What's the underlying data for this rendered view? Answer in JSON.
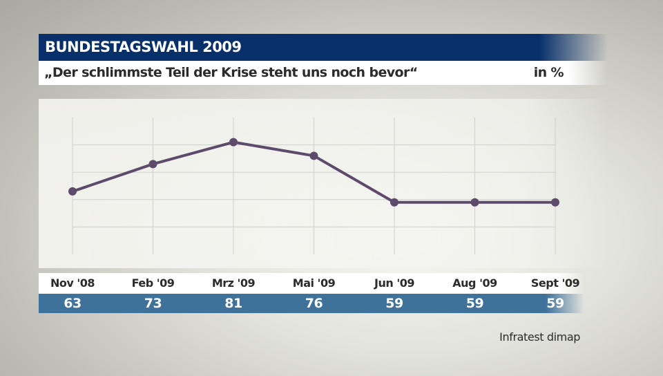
{
  "header": {
    "title": "BUNDESTAGSWAHL 2009",
    "subtitle": "„Der schlimmste Teil der Krise steht uns noch bevor“",
    "unit": "in %"
  },
  "source": "Infratest dimap",
  "chart_data": {
    "type": "line",
    "title": "BUNDESTAGSWAHL 2009",
    "subtitle": "„Der schlimmste Teil der Krise steht uns noch bevor“",
    "unit": "in %",
    "categories": [
      "Nov '08",
      "Feb '09",
      "Mrz '09",
      "Mai '09",
      "Jun '09",
      "Aug '09",
      "Sept '09"
    ],
    "values": [
      63,
      73,
      81,
      76,
      59,
      59,
      59
    ],
    "ylim": [
      40,
      90
    ],
    "gridlines_y": [
      50,
      60,
      70,
      80
    ],
    "grid": true,
    "line_color": "#5e4b6c",
    "source": "Infratest dimap"
  }
}
